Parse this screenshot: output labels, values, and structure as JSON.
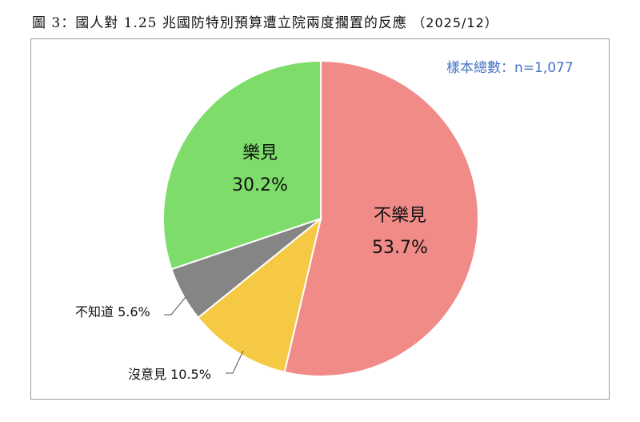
{
  "title": {
    "main": "圖 3：國人對 1.25 兆國防特別預算遭立院兩度擱置的反應",
    "date": "（2025/12）"
  },
  "sample": "樣本總數：n=1,077",
  "chart_data": {
    "type": "pie",
    "title": "圖 3：國人對 1.25 兆國防特別預算遭立院兩度擱置的反應 （2025/12）",
    "annotation": "樣本總數：n=1,077",
    "categories": [
      "不樂見",
      "沒意見",
      "不知道",
      "樂見"
    ],
    "values": [
      53.7,
      10.5,
      5.6,
      30.2
    ],
    "colors": [
      "#f08b88",
      "#f6c944",
      "#858585",
      "#7ddc6a"
    ],
    "start_angle_deg": 0,
    "direction": "clockwise",
    "labels": [
      {
        "name": "不樂見",
        "value": "53.7%",
        "position": "inside"
      },
      {
        "name": "沒意見",
        "value": "10.5%",
        "position": "outside"
      },
      {
        "name": "不知道",
        "value": "5.6%",
        "position": "outside"
      },
      {
        "name": "樂見",
        "value": "30.2%",
        "position": "inside"
      }
    ],
    "legend": "none"
  }
}
